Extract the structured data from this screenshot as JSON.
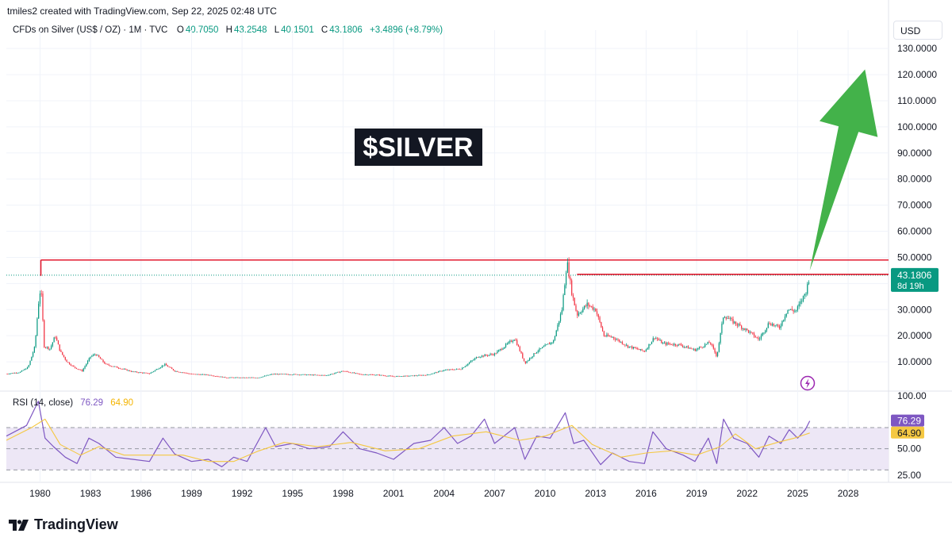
{
  "header": {
    "credit": "tmiles2 created with TradingView.com, Sep 22, 2025 02:48 UTC"
  },
  "legend": {
    "symbol": "CFDs on Silver (US$ / OZ) · 1M · TVC",
    "o_label": "O",
    "o_value": "40.7050",
    "h_label": "H",
    "h_value": "43.2548",
    "l_label": "L",
    "l_value": "40.1501",
    "c_label": "C",
    "c_value": "43.1806",
    "change": "+3.4896 (+8.79%)"
  },
  "currency_button": "USD",
  "brand": "TradingView",
  "colors": {
    "up": "#089981",
    "down": "#f23645",
    "resistance": "#e31a2f",
    "arrow": "#43b24a",
    "rsi": "#7e57c2",
    "rsi_ma": "#f5c842",
    "rsi_band": "#ede7f6"
  },
  "chart_data": [
    {
      "type": "candlestick",
      "symbol": "CFDs on Silver (US$ / OZ)",
      "interval": "1M",
      "annotation": "$SILVER",
      "price_axis": {
        "ticks": [
          "130.0000",
          "120.0000",
          "110.0000",
          "100.0000",
          "90.0000",
          "80.0000",
          "70.0000",
          "60.0000",
          "50.0000",
          "40.0000",
          "30.0000",
          "20.0000",
          "10.0000"
        ],
        "scale": "linear",
        "range": [
          0,
          134
        ]
      },
      "time_axis": {
        "ticks": [
          "1980",
          "1983",
          "1986",
          "1989",
          "1992",
          "1995",
          "1998",
          "2001",
          "2004",
          "2007",
          "2010",
          "2013",
          "2016",
          "2019",
          "2022",
          "2025",
          "2028"
        ],
        "range": [
          1978.0,
          2030.4
        ]
      },
      "last_price_label": "43.1806",
      "countdown_label": "8d 19h",
      "series": [
        {
          "name": "Close (approx.)",
          "points": [
            [
              1978.0,
              5.4
            ],
            [
              1978.8,
              6.0
            ],
            [
              1979.3,
              8.0
            ],
            [
              1979.7,
              16.0
            ],
            [
              1979.9,
              32.0
            ],
            [
              1980.05,
              39.0
            ],
            [
              1980.25,
              16.0
            ],
            [
              1980.6,
              15.0
            ],
            [
              1980.9,
              20.0
            ],
            [
              1981.2,
              14.0
            ],
            [
              1981.6,
              10.0
            ],
            [
              1982.0,
              8.0
            ],
            [
              1982.5,
              6.5
            ],
            [
              1983.0,
              12.0
            ],
            [
              1983.3,
              13.0
            ],
            [
              1983.9,
              9.0
            ],
            [
              1984.5,
              8.0
            ],
            [
              1985.5,
              6.2
            ],
            [
              1986.5,
              5.5
            ],
            [
              1987.4,
              9.0
            ],
            [
              1988.0,
              6.5
            ],
            [
              1989.0,
              5.3
            ],
            [
              1990.0,
              5.0
            ],
            [
              1991.0,
              4.0
            ],
            [
              1992.0,
              3.9
            ],
            [
              1993.0,
              4.0
            ],
            [
              1993.8,
              5.3
            ],
            [
              1995.0,
              5.2
            ],
            [
              1996.0,
              5.0
            ],
            [
              1997.0,
              4.8
            ],
            [
              1998.0,
              6.5
            ],
            [
              1999.0,
              5.2
            ],
            [
              2000.0,
              5.0
            ],
            [
              2001.0,
              4.4
            ],
            [
              2002.0,
              4.6
            ],
            [
              2003.0,
              5.0
            ],
            [
              2004.0,
              6.8
            ],
            [
              2005.0,
              7.3
            ],
            [
              2006.0,
              12.0
            ],
            [
              2007.0,
              13.0
            ],
            [
              2008.2,
              19.0
            ],
            [
              2008.8,
              9.5
            ],
            [
              2009.5,
              14.0
            ],
            [
              2010.5,
              18.0
            ],
            [
              2011.0,
              30.0
            ],
            [
              2011.3,
              48.5
            ],
            [
              2011.6,
              36.0
            ],
            [
              2011.9,
              28.0
            ],
            [
              2012.5,
              32.0
            ],
            [
              2013.0,
              30.0
            ],
            [
              2013.5,
              20.0
            ],
            [
              2014.0,
              19.5
            ],
            [
              2014.9,
              16.0
            ],
            [
              2015.9,
              14.0
            ],
            [
              2016.5,
              19.5
            ],
            [
              2017.0,
              17.0
            ],
            [
              2018.0,
              16.5
            ],
            [
              2018.9,
              14.5
            ],
            [
              2019.8,
              17.5
            ],
            [
              2020.2,
              12.0
            ],
            [
              2020.6,
              28.0
            ],
            [
              2021.0,
              26.0
            ],
            [
              2022.0,
              22.0
            ],
            [
              2022.7,
              18.5
            ],
            [
              2023.3,
              25.0
            ],
            [
              2023.9,
              23.0
            ],
            [
              2024.4,
              30.0
            ],
            [
              2024.9,
              29.5
            ],
            [
              2025.2,
              33.0
            ],
            [
              2025.5,
              37.0
            ],
            [
              2025.72,
              43.18
            ]
          ]
        }
      ],
      "annotations": [
        {
          "type": "horizontal-level",
          "from": 1980.05,
          "value": 49.0,
          "color": "#e31a2f"
        },
        {
          "type": "horizontal-level",
          "from": 2011.9,
          "value": 43.5,
          "color": "#e31a2f"
        },
        {
          "type": "arrow",
          "from": [
            2025.72,
            45.0
          ],
          "to": [
            2029.0,
            122.0
          ],
          "color": "#43b24a"
        }
      ]
    },
    {
      "type": "line",
      "title": "RSI (14, close)",
      "values_label": [
        "76.29",
        "64.90"
      ],
      "axis": {
        "ticks": [
          "100.00",
          "75.00",
          "50.00",
          "25.00"
        ],
        "range": [
          19,
          103
        ]
      },
      "band": [
        30,
        70
      ],
      "series": [
        {
          "name": "RSI",
          "color": "#7e57c2",
          "last_value": "76.29",
          "points": [
            [
              1978.0,
              62
            ],
            [
              1979.2,
              72
            ],
            [
              1979.9,
              95
            ],
            [
              1980.3,
              60
            ],
            [
              1980.8,
              52
            ],
            [
              1981.5,
              42
            ],
            [
              1982.2,
              36
            ],
            [
              1982.9,
              60
            ],
            [
              1983.5,
              55
            ],
            [
              1984.5,
              42
            ],
            [
              1985.5,
              40
            ],
            [
              1986.5,
              38
            ],
            [
              1987.3,
              60
            ],
            [
              1988.0,
              45
            ],
            [
              1989.0,
              38
            ],
            [
              1990.0,
              40
            ],
            [
              1990.8,
              33
            ],
            [
              1991.5,
              42
            ],
            [
              1992.3,
              38
            ],
            [
              1993.4,
              70
            ],
            [
              1994.0,
              52
            ],
            [
              1995.0,
              55
            ],
            [
              1996.0,
              50
            ],
            [
              1997.2,
              52
            ],
            [
              1998.0,
              66
            ],
            [
              1999.0,
              50
            ],
            [
              2000.0,
              46
            ],
            [
              2001.0,
              40
            ],
            [
              2002.2,
              55
            ],
            [
              2003.2,
              58
            ],
            [
              2004.0,
              70
            ],
            [
              2004.8,
              55
            ],
            [
              2005.6,
              62
            ],
            [
              2006.4,
              78
            ],
            [
              2007.0,
              55
            ],
            [
              2008.2,
              70
            ],
            [
              2008.8,
              40
            ],
            [
              2009.5,
              62
            ],
            [
              2010.3,
              60
            ],
            [
              2011.2,
              84
            ],
            [
              2011.7,
              55
            ],
            [
              2012.3,
              58
            ],
            [
              2013.3,
              35
            ],
            [
              2014.0,
              46
            ],
            [
              2015.0,
              38
            ],
            [
              2015.9,
              36
            ],
            [
              2016.4,
              66
            ],
            [
              2017.2,
              50
            ],
            [
              2018.2,
              44
            ],
            [
              2018.9,
              38
            ],
            [
              2019.7,
              60
            ],
            [
              2020.2,
              36
            ],
            [
              2020.6,
              78
            ],
            [
              2021.2,
              60
            ],
            [
              2022.0,
              55
            ],
            [
              2022.7,
              42
            ],
            [
              2023.3,
              62
            ],
            [
              2024.0,
              55
            ],
            [
              2024.5,
              68
            ],
            [
              2025.0,
              60
            ],
            [
              2025.45,
              68
            ],
            [
              2025.72,
              76.29
            ]
          ]
        },
        {
          "name": "RSI-based MA",
          "color": "#f5c842",
          "last_value": "64.90",
          "points": [
            [
              1978.0,
              58
            ],
            [
              1979.5,
              70
            ],
            [
              1980.3,
              78
            ],
            [
              1981.2,
              54
            ],
            [
              1982.4,
              44
            ],
            [
              1983.5,
              52
            ],
            [
              1985.0,
              44
            ],
            [
              1987.0,
              44
            ],
            [
              1988.5,
              44
            ],
            [
              1990.0,
              38
            ],
            [
              1991.5,
              38
            ],
            [
              1993.0,
              48
            ],
            [
              1994.5,
              56
            ],
            [
              1996.5,
              52
            ],
            [
              1998.5,
              56
            ],
            [
              2000.5,
              48
            ],
            [
              2002.5,
              50
            ],
            [
              2004.5,
              62
            ],
            [
              2006.5,
              66
            ],
            [
              2008.5,
              58
            ],
            [
              2010.0,
              62
            ],
            [
              2011.6,
              72
            ],
            [
              2012.8,
              54
            ],
            [
              2014.5,
              42
            ],
            [
              2016.0,
              46
            ],
            [
              2017.5,
              48
            ],
            [
              2019.0,
              44
            ],
            [
              2020.4,
              52
            ],
            [
              2021.3,
              64
            ],
            [
              2022.5,
              50
            ],
            [
              2023.8,
              56
            ],
            [
              2024.8,
              60
            ],
            [
              2025.72,
              64.9
            ]
          ]
        }
      ]
    }
  ]
}
